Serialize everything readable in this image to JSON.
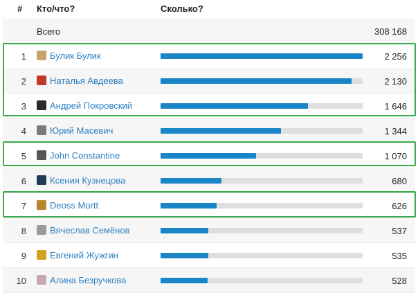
{
  "header": {
    "num": "#",
    "who": "Кто/что?",
    "how": "Сколько?"
  },
  "total": {
    "label": "Всего",
    "value": "308 168"
  },
  "rows": [
    {
      "rank": "1",
      "name": "Булик Булик",
      "value": "2 256",
      "fraction": 1.0,
      "avatar_color": "#c8a46a"
    },
    {
      "rank": "2",
      "name": "Наталья Авдеева",
      "value": "2 130",
      "fraction": 0.944,
      "avatar_color": "#c0392b"
    },
    {
      "rank": "3",
      "name": "Андрей Покровский",
      "value": "1 646",
      "fraction": 0.73,
      "avatar_color": "#2b2b2b"
    },
    {
      "rank": "4",
      "name": "Юрий Масевич",
      "value": "1 344",
      "fraction": 0.596,
      "avatar_color": "#7a7a7a"
    },
    {
      "rank": "5",
      "name": "John Constantine",
      "value": "1 070",
      "fraction": 0.474,
      "avatar_color": "#555555"
    },
    {
      "rank": "6",
      "name": "Ксения Кузнецова",
      "value": "680",
      "fraction": 0.301,
      "avatar_color": "#1f3b57"
    },
    {
      "rank": "7",
      "name": "Deoss Mortt",
      "value": "626",
      "fraction": 0.277,
      "avatar_color": "#b8862f"
    },
    {
      "rank": "8",
      "name": "Вячеслав Семёнов",
      "value": "537",
      "fraction": 0.238,
      "avatar_color": "#9a9a9a"
    },
    {
      "rank": "9",
      "name": "Евгений Жужгин",
      "value": "535",
      "fraction": 0.237,
      "avatar_color": "#d4a020"
    },
    {
      "rank": "10",
      "name": "Алина Безручкова",
      "value": "528",
      "fraction": 0.234,
      "avatar_color": "#c9a7b0"
    }
  ],
  "colors": {
    "bar": "#1a86c8",
    "track": "#dedede",
    "link": "#2a7fc1",
    "highlight": "#3aa94b"
  }
}
